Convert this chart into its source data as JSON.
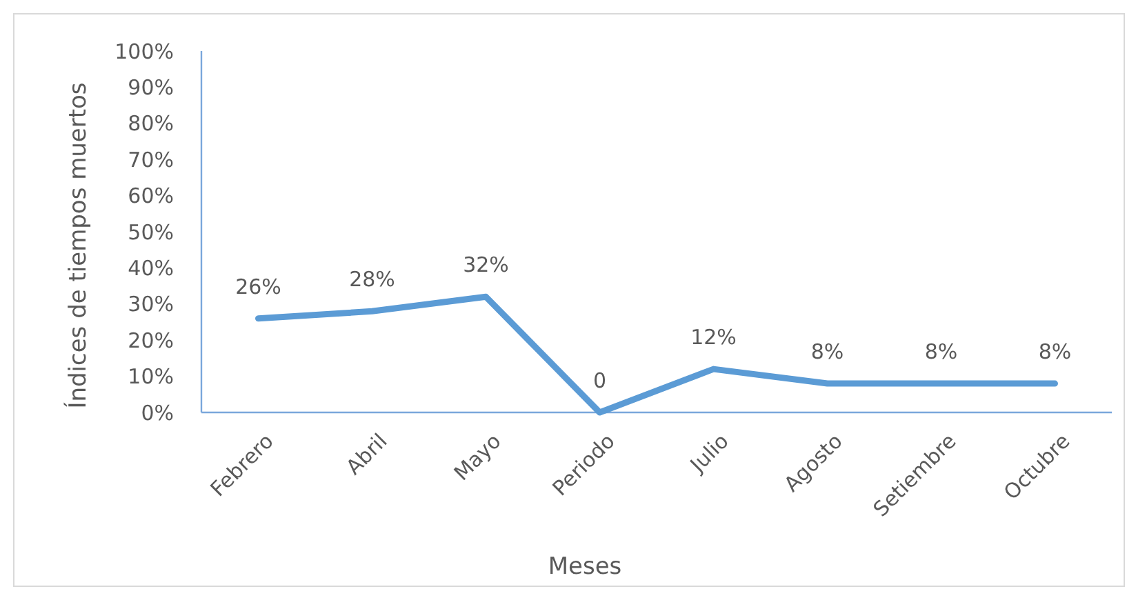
{
  "chart_data": {
    "type": "line",
    "xlabel": "Meses",
    "ylabel": "Índices de tiempos muertos",
    "categories": [
      "Febrero",
      "Abril",
      "Mayo",
      "Periodo",
      "Julio",
      "Agosto",
      "Setiembre",
      "Octubre"
    ],
    "series": [
      {
        "color": "#5b9bd5",
        "values": [
          26,
          28,
          32,
          0,
          12,
          8,
          8,
          8
        ],
        "value_labels": [
          "26%",
          "28%",
          "32%",
          "0",
          "12%",
          "8%",
          "8%",
          "8%"
        ]
      }
    ],
    "ylim": [
      0,
      100
    ],
    "yticks": [
      {
        "value": 0,
        "label": "0%"
      },
      {
        "value": 10,
        "label": "10%"
      },
      {
        "value": 20,
        "label": "20%"
      },
      {
        "value": 30,
        "label": "30%"
      },
      {
        "value": 40,
        "label": "40%"
      },
      {
        "value": 50,
        "label": "50%"
      },
      {
        "value": 60,
        "label": "60%"
      },
      {
        "value": 70,
        "label": "70%"
      },
      {
        "value": 80,
        "label": "80%"
      },
      {
        "value": 90,
        "label": "90%"
      },
      {
        "value": 100,
        "label": "100%"
      }
    ],
    "grid": false,
    "marker": "none",
    "line_style": "solid"
  }
}
